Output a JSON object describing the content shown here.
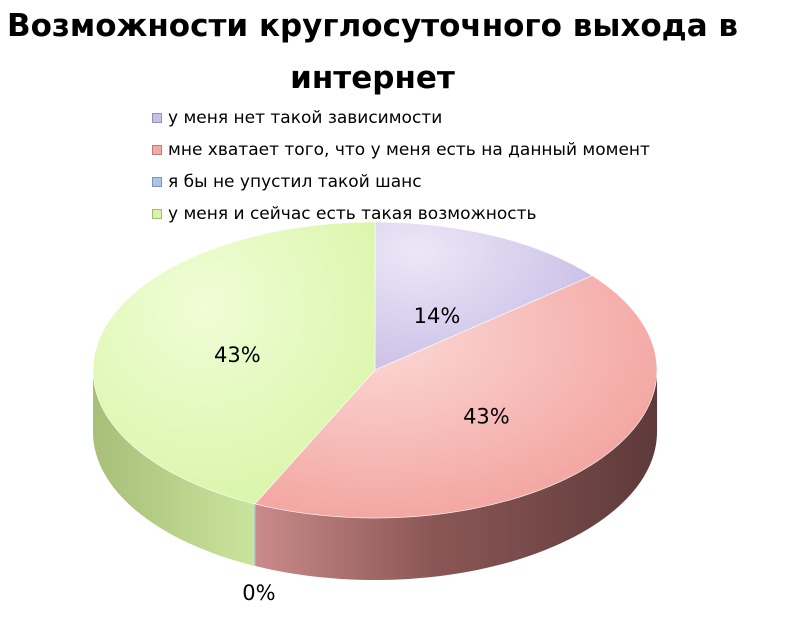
{
  "chart_data": {
    "type": "pie",
    "title": "Возможности круглосуточного выхода в интернет",
    "title_lines": [
      "Возможности круглосуточного выхода в",
      "интернет"
    ],
    "legend_position": "top",
    "slices": [
      {
        "label": "у меня нет такой зависимости",
        "value": 14,
        "display": "14%",
        "color": "#c9bfe6"
      },
      {
        "label": "мне хватает того, что у меня есть на данный момент",
        "value": 43,
        "display": "43%",
        "color": "#f5a9a6"
      },
      {
        "label": "я бы не упустил такой шанс",
        "value": 0,
        "display": "0%",
        "color": "#a9c6ea"
      },
      {
        "label": "у меня и сейчас есть такая возможность",
        "value": 43,
        "display": "43%",
        "color": "#d8f5a8"
      }
    ]
  }
}
